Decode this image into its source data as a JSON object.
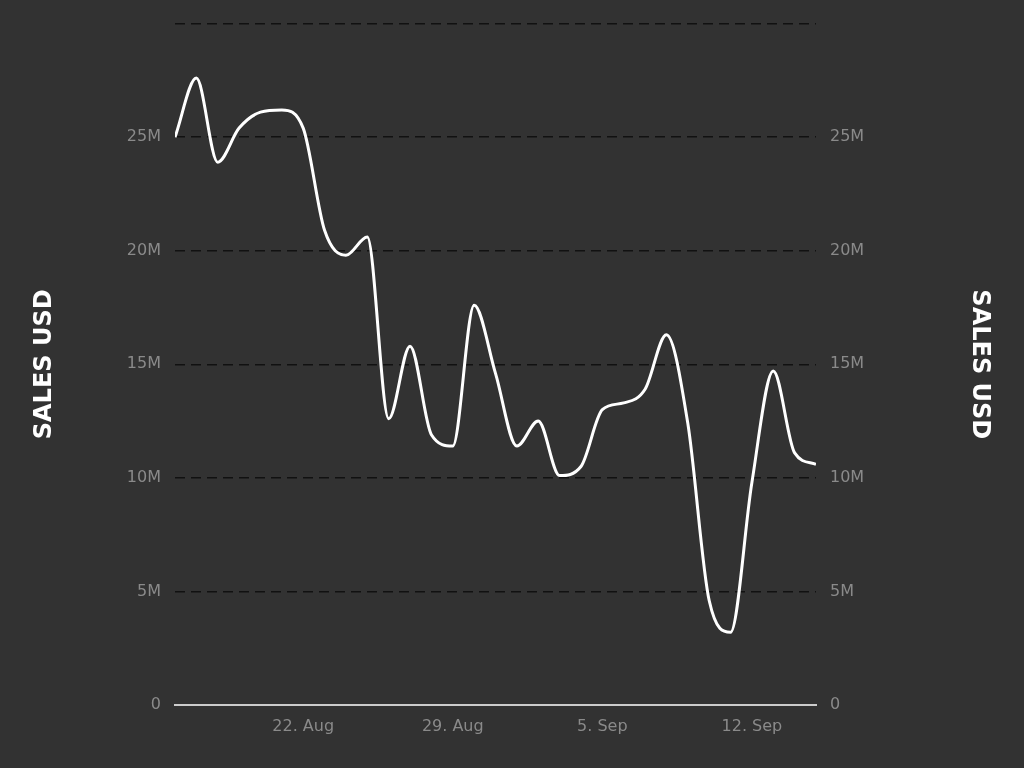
{
  "chart_data": {
    "type": "line",
    "ylabel": "SALES USD",
    "y2label": "SALES USD",
    "x": [
      "--08-16",
      "--08-17",
      "--08-18",
      "--08-19",
      "--08-20",
      "--08-21",
      "--08-22",
      "--08-23",
      "--08-24",
      "--08-25",
      "--08-26",
      "--08-27",
      "--08-28",
      "--08-29",
      "--08-30",
      "--08-31",
      "--09-01",
      "--09-02",
      "--09-03",
      "--09-04",
      "--09-05",
      "--09-06",
      "--09-07",
      "--09-08",
      "--09-09",
      "--09-10",
      "--09-11",
      "--09-12",
      "--09-13",
      "--09-14",
      "--09-15"
    ],
    "series": [
      {
        "color": "#ffffff",
        "values": [
          25.0,
          27.6,
          23.9,
          25.4,
          26.1,
          26.2,
          25.4,
          20.9,
          19.8,
          20.6,
          12.6,
          15.8,
          11.9,
          11.4,
          17.6,
          14.6,
          11.4,
          12.5,
          10.1,
          10.5,
          13.0,
          13.3,
          13.9,
          16.3,
          12.4,
          4.6,
          3.2,
          9.8,
          14.7,
          11.1,
          10.6
        ]
      }
    ],
    "xlim": [
      "--08-16",
      "--09-15"
    ],
    "xticks": [
      {
        "value": "--08-22",
        "label": "22. Aug"
      },
      {
        "value": "--08-29",
        "label": "29. Aug"
      },
      {
        "value": "--09-05",
        "label": "5. Sep"
      },
      {
        "value": "--09-12",
        "label": "12. Sep"
      }
    ],
    "ylim": [
      0,
      30
    ],
    "yticks": [
      0,
      {
        "value": 5,
        "label": "5M"
      },
      {
        "value": 10,
        "label": "10M"
      },
      {
        "value": 15,
        "label": "15M"
      },
      {
        "value": 20,
        "label": "20M"
      },
      {
        "value": 25,
        "label": "25M"
      },
      {
        "value": 30,
        "label": null
      }
    ],
    "y2lim": [
      0,
      30
    ],
    "y2ticks": [
      0,
      {
        "value": 5,
        "label": "5M"
      },
      {
        "value": 10,
        "label": "10M"
      },
      {
        "value": 15,
        "label": "15M"
      },
      {
        "value": 20,
        "label": "20M"
      },
      {
        "value": 25,
        "label": "25M"
      },
      {
        "value": 30,
        "label": null
      }
    ],
    "grid": "y",
    "line_style": "solid",
    "marker": "none",
    "legend": false
  }
}
